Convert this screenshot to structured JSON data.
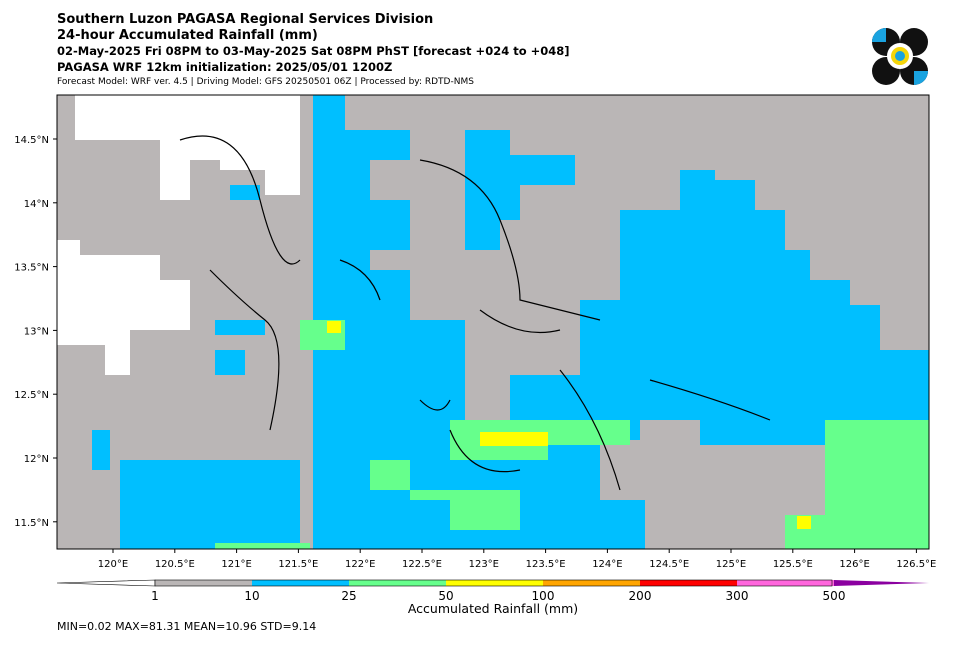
{
  "header": {
    "line1": "Southern Luzon PAGASA Regional Services Division",
    "line2": "24-hour Accumulated Rainfall (mm)",
    "line3": "02-May-2025 Fri 08PM to 03-May-2025 Sat 08PM PhST [forecast +024 to +048]",
    "line4": "PAGASA WRF 12km initialization: 2025/05/01 1200Z",
    "line5": "Forecast Model: WRF ver. 4.5 | Driving Model: GFS 20250501 06Z | Processed by: RDTD-NMS"
  },
  "map": {
    "lon_ticks": [
      "120°E",
      "120.5°E",
      "121°E",
      "121.5°E",
      "122°E",
      "122.5°E",
      "123°E",
      "123.5°E",
      "124°E",
      "124.5°E",
      "125°E",
      "125.5°E",
      "126°E",
      "126.5°E"
    ],
    "lat_ticks": [
      "14.5°N",
      "14°N",
      "13.5°N",
      "13°N",
      "12.5°N",
      "12°N",
      "11.5°N"
    ]
  },
  "colorbar": {
    "title": "Accumulated Rainfall (mm)",
    "labels": [
      "1",
      "10",
      "25",
      "50",
      "100",
      "200",
      "300",
      "500"
    ],
    "colors": [
      "#bab6b6",
      "#00bfff",
      "#66ff8c",
      "#ffff00",
      "#ffa500",
      "#ff0000",
      "#ff66dd",
      "#8b00a0"
    ]
  },
  "stats": "MIN=0.02   MAX=81.31   MEAN=10.96   STD=9.14"
}
